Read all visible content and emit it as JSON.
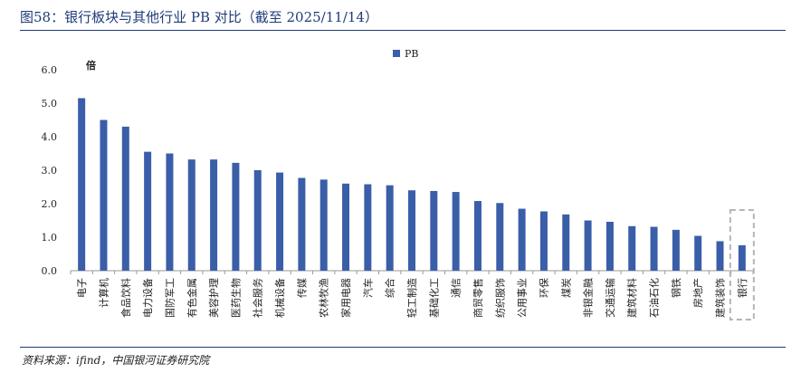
{
  "figure": {
    "title": "图58：银行板块与其他行业 PB 对比（截至 2025/11/14）",
    "source": "资料来源：ifind，中国银河证券研究院"
  },
  "chart_data": {
    "type": "bar",
    "unit_label": "倍",
    "ylim": [
      0,
      6
    ],
    "yticks": [
      "0.0",
      "1.0",
      "2.0",
      "3.0",
      "4.0",
      "5.0",
      "6.0"
    ],
    "grid": false,
    "legend_position": "top-center",
    "series": [
      {
        "name": "PB",
        "color": "#3a5ea8",
        "values": [
          5.15,
          4.5,
          4.3,
          3.55,
          3.5,
          3.32,
          3.32,
          3.22,
          3.0,
          2.93,
          2.77,
          2.72,
          2.6,
          2.58,
          2.55,
          2.4,
          2.38,
          2.35,
          2.08,
          2.02,
          1.85,
          1.77,
          1.68,
          1.5,
          1.46,
          1.33,
          1.31,
          1.22,
          1.04,
          0.88,
          0.76
        ]
      }
    ],
    "categories": [
      "电子",
      "计算机",
      "食品饮料",
      "电力设备",
      "国防军工",
      "有色金属",
      "美容护理",
      "医药生物",
      "社会服务",
      "机械设备",
      "传媒",
      "农林牧渔",
      "家用电器",
      "汽车",
      "综合",
      "轻工制造",
      "基础化工",
      "通信",
      "商贸零售",
      "纺织服饰",
      "公用事业",
      "环保",
      "煤炭",
      "非银金融",
      "交通运输",
      "建筑材料",
      "石油石化",
      "钢铁",
      "房地产",
      "建筑装饰",
      "银行"
    ],
    "highlight_category": "银行",
    "highlight_color": "#b5b5b5"
  }
}
